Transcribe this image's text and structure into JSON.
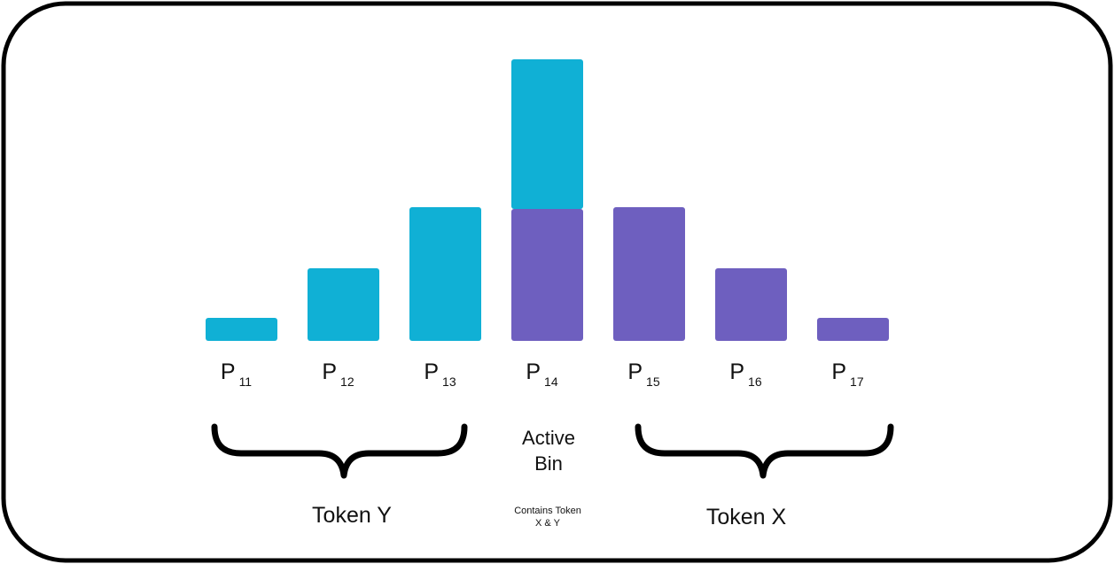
{
  "chart_data": {
    "type": "bar",
    "stacked": true,
    "categories": [
      {
        "label": "P",
        "subscript": "11"
      },
      {
        "label": "P",
        "subscript": "12"
      },
      {
        "label": "P",
        "subscript": "13"
      },
      {
        "label": "P",
        "subscript": "14"
      },
      {
        "label": "P",
        "subscript": "15"
      },
      {
        "label": "P",
        "subscript": "16"
      },
      {
        "label": "P",
        "subscript": "17"
      }
    ],
    "series": [
      {
        "name": "Token X",
        "color": "#6e5fbf",
        "values": [
          null,
          null,
          null,
          149,
          151,
          82,
          26
        ]
      },
      {
        "name": "Token Y",
        "color": "#10b0d5",
        "values": [
          26,
          82,
          151,
          169,
          null,
          null,
          null
        ]
      }
    ],
    "ylim": [
      0,
      318
    ],
    "annotations": {
      "active_bin": [
        "Active",
        "Bin"
      ],
      "contains": [
        "Contains Token",
        "X & Y"
      ]
    }
  }
}
